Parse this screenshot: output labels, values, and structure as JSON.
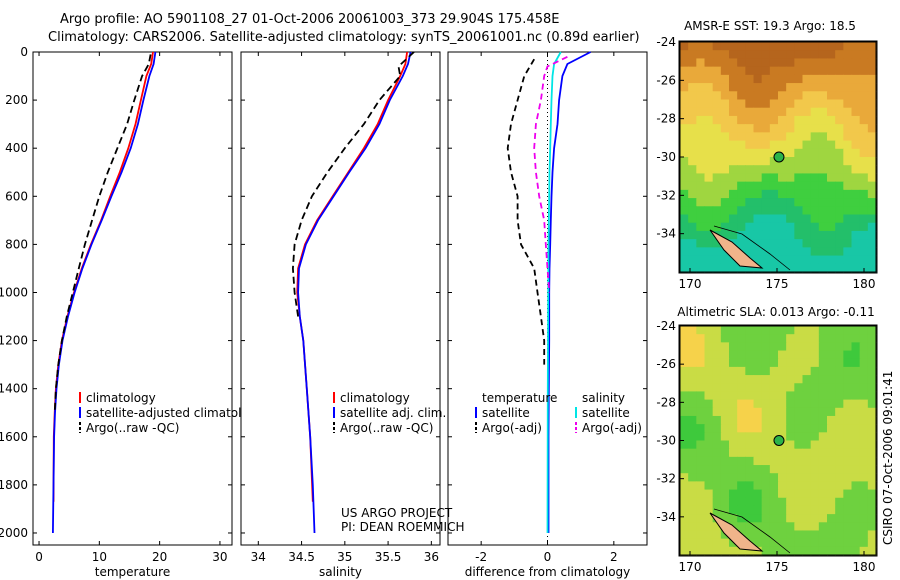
{
  "title_line1": "Argo profile: AO 5901108_27 01-Oct-2006 20061003_373 29.904S 175.458E",
  "title_line2": "Climatology: CARS2006. Satellite-adjusted climatology: synTS_20061001.nc (0.89d earlier)",
  "chart_data": [
    {
      "type": "line",
      "xlabel": "temperature",
      "xlim": [
        -1,
        32
      ],
      "ylim": [
        0,
        2050
      ],
      "y_reversed": true,
      "yticks": [
        0,
        200,
        400,
        600,
        800,
        1000,
        1200,
        1400,
        1600,
        1800,
        2000
      ],
      "xticks": [
        0,
        10,
        20,
        30
      ],
      "legend": [
        "climatology",
        "satellite-adjusted climatology",
        "Argo(..raw -QC)"
      ],
      "series": [
        {
          "name": "climatology",
          "color": "#ff0000",
          "dash": "",
          "x": [
            18.9,
            18.6,
            17.8,
            16.9,
            16.0,
            14.8,
            13.4,
            11.8,
            10.3,
            8.6,
            7.1,
            5.8,
            4.7,
            3.8,
            3.2,
            2.8,
            2.6,
            2.45,
            2.4
          ],
          "y": [
            0,
            50,
            100,
            200,
            300,
            400,
            500,
            600,
            700,
            800,
            900,
            1000,
            1100,
            1200,
            1300,
            1400,
            1500,
            1600,
            1870
          ]
        },
        {
          "name": "satellite-adjusted climatology",
          "color": "#0000ff",
          "dash": "",
          "x": [
            19.3,
            19.0,
            18.3,
            17.3,
            16.4,
            15.2,
            13.7,
            12.0,
            10.4,
            8.7,
            7.2,
            5.9,
            4.8,
            3.9,
            3.3,
            2.9,
            2.65,
            2.5,
            2.4,
            2.3
          ],
          "y": [
            0,
            50,
            100,
            200,
            300,
            400,
            500,
            600,
            700,
            800,
            900,
            1000,
            1100,
            1200,
            1300,
            1400,
            1500,
            1600,
            1800,
            2000
          ]
        },
        {
          "name": "Argo(..raw -QC)",
          "color": "#000000",
          "dash": "7,4",
          "x": [
            18.5,
            18.2,
            17.1,
            15.8,
            14.6,
            13.0,
            11.4,
            10.0,
            8.8,
            7.6,
            6.6,
            5.6,
            4.6,
            3.8,
            3.2,
            2.8,
            2.6
          ],
          "y": [
            10,
            50,
            100,
            200,
            300,
            400,
            500,
            600,
            700,
            800,
            900,
            1000,
            1100,
            1200,
            1300,
            1400,
            1500
          ]
        }
      ]
    },
    {
      "type": "line",
      "xlabel": "salinity",
      "xlim": [
        33.8,
        36.1
      ],
      "ylim": [
        0,
        2050
      ],
      "y_reversed": true,
      "xticks": [
        34,
        34.5,
        35,
        35.5,
        36
      ],
      "xticklabels": [
        "34",
        "34.5",
        "35",
        "35.5",
        "36"
      ],
      "legend": [
        "climatology",
        "satellite adj. clim.",
        "Argo(..raw -QC)"
      ],
      "series": [
        {
          "name": "climatology",
          "color": "#ff0000",
          "dash": "",
          "x": [
            35.72,
            35.7,
            35.64,
            35.5,
            35.38,
            35.22,
            35.04,
            34.86,
            34.68,
            34.54,
            34.46,
            34.45,
            34.48,
            34.52,
            34.56,
            34.6,
            34.63
          ],
          "y": [
            0,
            50,
            100,
            200,
            300,
            400,
            500,
            600,
            700,
            800,
            900,
            1000,
            1100,
            1200,
            1400,
            1600,
            1870
          ]
        },
        {
          "name": "satellite adj. clim.",
          "color": "#0000ff",
          "dash": "",
          "x": [
            35.76,
            35.73,
            35.67,
            35.52,
            35.4,
            35.24,
            35.05,
            34.87,
            34.69,
            34.55,
            34.47,
            34.46,
            34.48,
            34.52,
            34.56,
            34.6,
            34.63,
            34.65
          ],
          "y": [
            0,
            50,
            100,
            200,
            300,
            400,
            500,
            600,
            700,
            800,
            900,
            1000,
            1100,
            1200,
            1400,
            1600,
            1800,
            2000
          ]
        },
        {
          "name": "Argo(..raw -QC)",
          "color": "#000000",
          "dash": "7,4",
          "x": [
            35.8,
            35.62,
            35.64,
            35.4,
            35.22,
            35.0,
            34.8,
            34.62,
            34.5,
            34.42,
            34.4,
            34.42,
            34.46
          ],
          "y": [
            0,
            60,
            100,
            200,
            300,
            400,
            500,
            600,
            700,
            800,
            900,
            1000,
            1100
          ]
        }
      ]
    },
    {
      "type": "line",
      "xlabel": "difference from climatology",
      "xlim": [
        -3,
        3
      ],
      "ylim": [
        0,
        2050
      ],
      "y_reversed": true,
      "xticks": [
        -2,
        0,
        2
      ],
      "legend_titles": [
        "temperature",
        "salinity"
      ],
      "legend": [
        "satellite",
        "Argo(-adj)",
        "satellite",
        "Argo(-adj)"
      ],
      "series": [
        {
          "name": "satellite",
          "color": "#0000ff",
          "dash": "",
          "x": [
            1.3,
            0.6,
            0.45,
            0.35,
            0.3,
            0.2,
            0.15,
            0.12,
            0.1,
            0.08,
            0.06,
            0.05,
            0.05,
            0.04,
            0.03,
            0.03
          ],
          "y": [
            0,
            50,
            100,
            200,
            300,
            400,
            500,
            600,
            700,
            800,
            900,
            1000,
            1200,
            1400,
            1600,
            2000
          ]
        },
        {
          "name": "Argo(-adj)",
          "color": "#000000",
          "dash": "6,4",
          "x": [
            -0.4,
            -0.7,
            -0.9,
            -1.1,
            -1.2,
            -1.1,
            -0.9,
            -0.9,
            -0.8,
            -0.4,
            -0.3,
            -0.2,
            -0.1,
            -0.1
          ],
          "y": [
            30,
            100,
            200,
            300,
            400,
            500,
            600,
            700,
            800,
            900,
            1000,
            1100,
            1200,
            1300
          ]
        },
        {
          "name": "satellite",
          "color": "#00e5e5",
          "dash": "",
          "x": [
            0.4,
            0.2,
            0.15,
            0.12,
            0.1,
            0.08,
            0.06,
            0.05,
            0.04,
            0.03,
            0.02,
            0.01,
            0.0
          ],
          "y": [
            0,
            50,
            100,
            200,
            300,
            400,
            500,
            600,
            700,
            800,
            1000,
            1400,
            2000
          ]
        },
        {
          "name": "Argo(-adj)",
          "color": "#ee00ee",
          "dash": "6,4",
          "x": [
            0.6,
            0.0,
            -0.1,
            -0.2,
            -0.35,
            -0.4,
            -0.35,
            -0.25,
            -0.1,
            -0.05,
            0.0,
            0.05
          ],
          "y": [
            20,
            60,
            100,
            200,
            300,
            400,
            500,
            600,
            700,
            800,
            900,
            1000
          ]
        }
      ]
    }
  ],
  "maps": [
    {
      "title": "AMSR-E SST: 19.3 Argo: 18.5",
      "yticks": [
        "-24",
        "-26",
        "-28",
        "-30",
        "-32",
        "-34"
      ],
      "colors": [
        "#b5651d",
        "#c97a22",
        "#e9a93a",
        "#f2c84b",
        "#e7e04a",
        "#9fd640",
        "#3fcf3f",
        "#23bf6a",
        "#18c7a6"
      ]
    },
    {
      "title": "Altimetric SLA: 0.013 Argo: -0.11",
      "yticks": [
        "-24",
        "-26",
        "-28",
        "-30",
        "-32",
        "-34"
      ],
      "xticks": [
        "170",
        "175",
        "180"
      ],
      "colors": [
        "#f6d24a",
        "#c9dc45",
        "#6ed13f",
        "#3ec93c"
      ]
    }
  ],
  "project_line1": "US ARGO PROJECT",
  "project_line2": "PI: DEAN ROEMMICH",
  "timestamp": "CSIRO 07-Oct-2006 09:01:41"
}
